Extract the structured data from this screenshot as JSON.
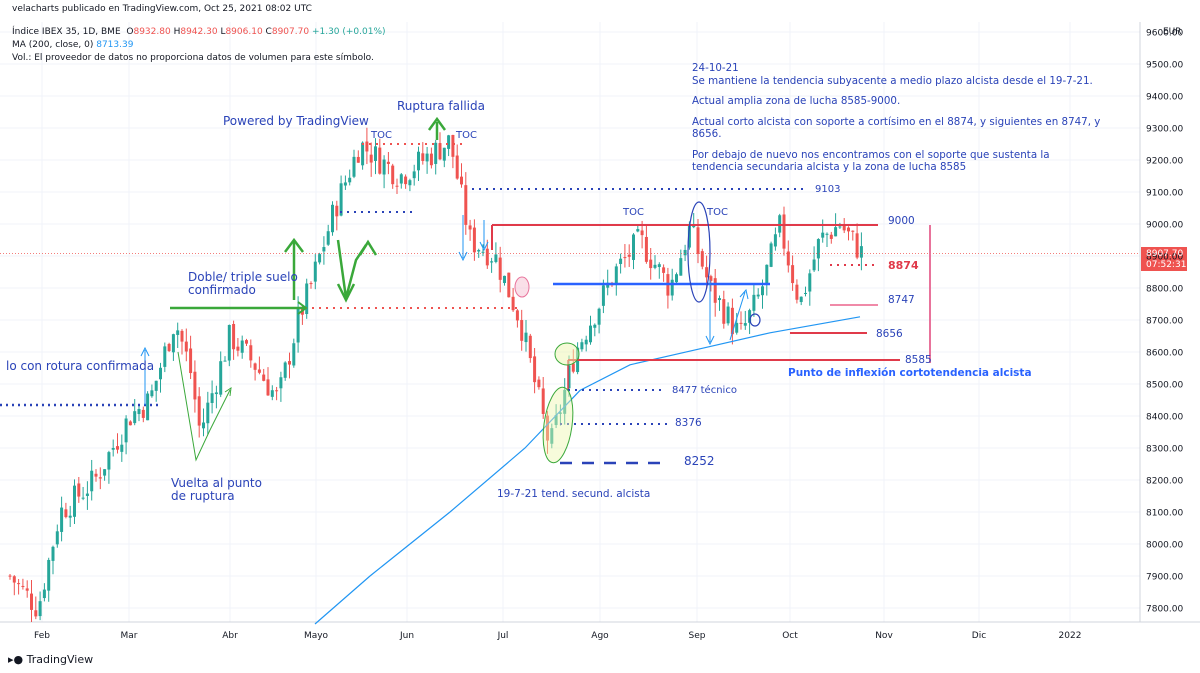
{
  "header": {
    "published": "velacharts publicado en TradingView.com, Oct 25, 2021 08:02 UTC",
    "symbol": "Índice IBEX 35, 1D, BME",
    "o_label": "O",
    "o_value": "8932.80",
    "h_label": "H",
    "h_value": "8942.30",
    "l_label": "L",
    "l_value": "8906.10",
    "c_label": "C",
    "c_value": "8907.70",
    "change": "+1.30 (+0.01%)",
    "ma_label": "MA (200, close, 0)",
    "ma_value": "8713.39",
    "volume_note": "Vol.: El proveedor de datos no proporciona datos de volumen para este símbolo."
  },
  "annotations": {
    "powered": "Powered by TradingView",
    "ruptura": "Ruptura fallida",
    "toc1": "TOC",
    "toc2": "TOC",
    "toc3": "TOC",
    "toc4": "TOC",
    "doble_line1": "Doble/ triple suelo",
    "doble_line2": "confirmado",
    "rotura": "lo con rotura confirmada",
    "vuelta_line1": "Vuelta al punto",
    "vuelta_line2": "de ruptura",
    "tendencia": "19-7-21 tend. secund. alcista",
    "inflexion": "Punto de inflexión cortotendencia alcista",
    "tecnico": "8477 técnico"
  },
  "levels": {
    "l9103": "9103",
    "l9000": "9000",
    "l8874": "8874",
    "l8747": "8747",
    "l8656": "8656",
    "l8585": "8585",
    "l8376": "8376",
    "l8252": "8252"
  },
  "note": {
    "date": "24-10-21",
    "p1": "Se mantiene la tendencia subyacente a medio plazo alcista desde el 19-7-21.",
    "p2": "Actual amplia zona de lucha 8585-9000.",
    "p3": "Actual corto alcista con soporte a cortísimo en el 8874, y siguientes en 8747, y 8656.",
    "p4": "Por debajo de nuevo nos encontramos con el soporte que sustenta la tendencia secundaria alcista y la zona de lucha 8585"
  },
  "price_badge": {
    "price": "8907.70",
    "countdown": "07:52:31"
  },
  "currency": "EUR",
  "footer": "TradingView",
  "colors": {
    "up": "#26a69a",
    "down": "#ef5350",
    "ma": "#2196f3",
    "annotation": "#2a43b8",
    "pink": "#e8739b",
    "green": "#3aa83a"
  },
  "chart_data": {
    "type": "candlestick",
    "y_ticks": [
      7800,
      7900,
      8000,
      8100,
      8200,
      8300,
      8400,
      8500,
      8600,
      8700,
      8800,
      8900,
      9000,
      9100,
      9200,
      9300,
      9400,
      9500,
      9600
    ],
    "ylim": [
      7740,
      9660
    ],
    "x_ticks": [
      "Feb",
      "Mar",
      "Abr",
      "Mayo",
      "Jun",
      "Jul",
      "Ago",
      "Sep",
      "Oct",
      "Nov",
      "Dic",
      "2022"
    ],
    "last_close": 8907.7,
    "ma_period": 200,
    "ma_path": [
      [
        7750,
        315
      ],
      [
        7900,
        370
      ],
      [
        8100,
        450
      ],
      [
        8300,
        525
      ],
      [
        8480,
        580
      ],
      [
        8560,
        630
      ],
      [
        8610,
        700
      ],
      [
        8660,
        770
      ],
      [
        8710,
        860
      ]
    ],
    "closes_by_anchor": [
      [
        7900,
        10
      ],
      [
        7800,
        38
      ],
      [
        8100,
        60
      ],
      [
        8200,
        95
      ],
      [
        8400,
        130
      ],
      [
        8450,
        150
      ],
      [
        8700,
        175
      ],
      [
        8550,
        190
      ],
      [
        8350,
        200
      ],
      [
        8650,
        230
      ],
      [
        8560,
        255
      ],
      [
        8450,
        278
      ],
      [
        8700,
        298
      ],
      [
        8800,
        310
      ],
      [
        9050,
        335
      ],
      [
        9250,
        360
      ],
      [
        9150,
        400
      ],
      [
        9260,
        450
      ],
      [
        8950,
        470
      ],
      [
        8900,
        495
      ],
      [
        8700,
        520
      ],
      [
        8300,
        550
      ],
      [
        8600,
        575
      ],
      [
        8850,
        615
      ],
      [
        8950,
        640
      ],
      [
        8800,
        670
      ],
      [
        8990,
        690
      ],
      [
        8800,
        710
      ],
      [
        8650,
        740
      ],
      [
        8780,
        760
      ],
      [
        8990,
        780
      ],
      [
        8750,
        800
      ],
      [
        8950,
        820
      ],
      [
        9000,
        840
      ],
      [
        8907,
        862
      ]
    ],
    "up_color": "#26a69a",
    "down_color": "#ef5350"
  }
}
